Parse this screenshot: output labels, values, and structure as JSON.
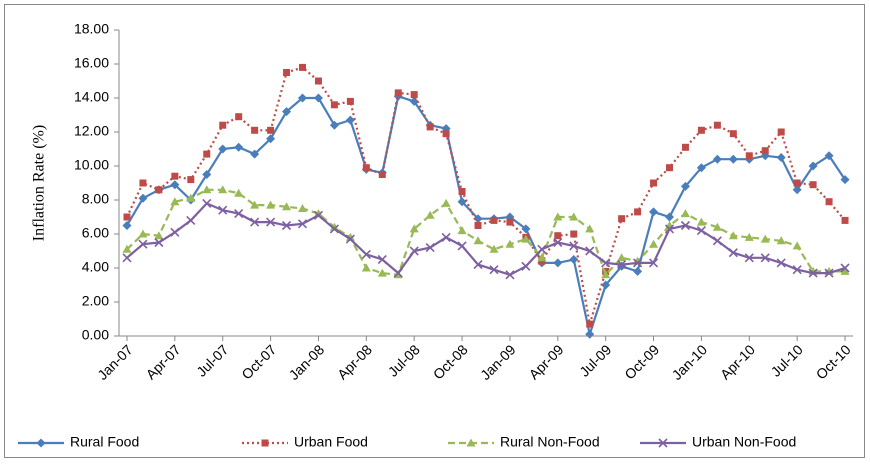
{
  "chart_data": {
    "type": "line",
    "y_label": "Inflation Rate (%)",
    "categories": [
      "Jan-07",
      null,
      null,
      "Apr-07",
      null,
      null,
      "Jul-07",
      null,
      null,
      "Oct-07",
      null,
      null,
      "Jan-08",
      null,
      null,
      "Apr-08",
      null,
      null,
      "Jul-08",
      null,
      null,
      "Oct-08",
      null,
      null,
      "Jan-09",
      null,
      null,
      "Apr-09",
      null,
      null,
      "Jul-09",
      null,
      null,
      "Oct-09",
      null,
      null,
      "Jan-10",
      null,
      null,
      "Apr-10",
      null,
      null,
      "Jul-10",
      null,
      null,
      "Oct-10"
    ],
    "series": [
      {
        "name": "Rural Food",
        "color": "#4a7ebb",
        "marker": "diamond",
        "dash": "solid",
        "values": [
          6.5,
          8.1,
          8.6,
          8.9,
          8.0,
          9.5,
          11.0,
          11.1,
          10.7,
          11.6,
          13.2,
          14.0,
          14.0,
          12.4,
          12.7,
          9.8,
          9.6,
          14.1,
          13.8,
          12.4,
          12.2,
          7.9,
          6.9,
          6.9,
          7.0,
          6.3,
          4.3,
          4.3,
          4.5,
          0.1,
          3.0,
          4.1,
          3.8,
          7.3,
          7.0,
          8.8,
          9.9,
          10.4,
          10.4,
          10.4,
          10.6,
          10.5,
          8.6,
          10.0,
          10.6,
          9.2
        ]
      },
      {
        "name": "Urban Food",
        "color": "#be4b48",
        "marker": "square",
        "dash": "dotted",
        "values": [
          7.0,
          9.0,
          8.6,
          9.4,
          9.2,
          10.7,
          12.4,
          12.9,
          12.1,
          12.1,
          15.5,
          15.8,
          15.0,
          13.6,
          13.8,
          9.9,
          9.5,
          14.3,
          14.2,
          12.3,
          11.9,
          8.5,
          6.5,
          6.8,
          6.7,
          5.8,
          4.4,
          5.9,
          6.0,
          0.7,
          3.8,
          6.9,
          7.3,
          9.0,
          9.9,
          11.1,
          12.1,
          12.4,
          11.9,
          10.6,
          10.9,
          12.0,
          9.0,
          8.9,
          7.9,
          6.8
        ]
      },
      {
        "name": "Rural Non-Food",
        "color": "#98b954",
        "marker": "triangle",
        "dash": "dashed",
        "values": [
          5.1,
          6.0,
          5.9,
          7.9,
          8.1,
          8.6,
          8.6,
          8.4,
          7.7,
          7.7,
          7.6,
          7.5,
          7.2,
          6.4,
          5.8,
          4.0,
          3.7,
          3.6,
          6.3,
          7.1,
          7.8,
          6.2,
          5.6,
          5.1,
          5.4,
          5.7,
          4.6,
          7.0,
          7.0,
          6.3,
          3.6,
          4.6,
          4.4,
          5.4,
          6.5,
          7.2,
          6.7,
          6.4,
          5.9,
          5.8,
          5.7,
          5.6,
          5.3,
          3.8,
          3.8,
          3.8
        ]
      },
      {
        "name": "Urban Non-Food",
        "color": "#7d60a0",
        "marker": "x",
        "dash": "solid",
        "values": [
          4.6,
          5.4,
          5.5,
          6.1,
          6.8,
          7.8,
          7.4,
          7.2,
          6.7,
          6.7,
          6.5,
          6.6,
          7.1,
          6.3,
          5.7,
          4.8,
          4.5,
          3.7,
          5.0,
          5.2,
          5.8,
          5.3,
          4.2,
          3.9,
          3.6,
          4.1,
          5.1,
          5.5,
          5.3,
          5.0,
          4.3,
          4.2,
          4.3,
          4.3,
          6.3,
          6.5,
          6.2,
          5.6,
          4.9,
          4.6,
          4.6,
          4.3,
          3.9,
          3.7,
          3.7,
          4.0
        ]
      }
    ],
    "ylim": [
      0,
      18
    ],
    "yticks": [
      {
        "value": 0,
        "label": "0.00"
      },
      {
        "value": 2,
        "label": "2.00"
      },
      {
        "value": 4,
        "label": "4.00"
      },
      {
        "value": 6,
        "label": "6.00"
      },
      {
        "value": 8,
        "label": "8.00"
      },
      {
        "value": 10,
        "label": "10.00"
      },
      {
        "value": 12,
        "label": "12.00"
      },
      {
        "value": 14,
        "label": "14.00"
      },
      {
        "value": 16,
        "label": "16.00"
      },
      {
        "value": 18,
        "label": "18.00"
      }
    ],
    "grid": false,
    "legend": "bottom"
  }
}
